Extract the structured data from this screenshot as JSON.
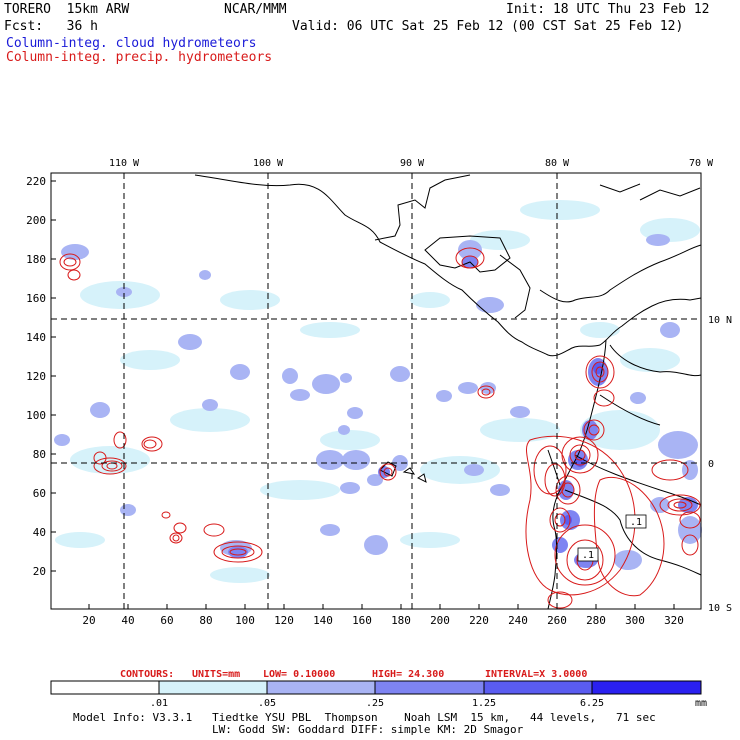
{
  "header": {
    "model": "TORERO  15km ARW",
    "center": "NCAR/MMM",
    "init": "Init: 18 UTC Thu 23 Feb 12",
    "fcst": "Fcst:   36 h",
    "valid": "Valid: 06 UTC Sat 25 Feb 12 (00 CST Sat 25 Feb 12)",
    "legend_cloud": "Column-integ. cloud hydrometeors",
    "legend_precip": "Column-integ. precip. hydrometeors"
  },
  "map": {
    "top_lon_labels": [
      "110 W",
      "100 W",
      "90 W",
      "80 W",
      "70 W"
    ],
    "right_lat_labels": [
      "10 N",
      "0",
      "10 S"
    ],
    "left_tick_labels": [
      "220",
      "200",
      "180",
      "160",
      "140",
      "120",
      "100",
      "80",
      "60",
      "40",
      "20"
    ],
    "bottom_tick_labels": [
      "20",
      "40",
      "60",
      "80",
      "100",
      "120",
      "140",
      "160",
      "180",
      "200",
      "220",
      "240",
      "260",
      "280",
      "300",
      "320"
    ],
    "contour_box_labels": [
      ".1",
      ".1"
    ]
  },
  "contour_info": {
    "contours": "CONTOURS:",
    "units": "UNITS=mm",
    "low": "LOW= 0.10000",
    "high": "HIGH=  24.300",
    "interval": "INTERVAL=X  3.0000"
  },
  "colorbar": {
    "labels": [
      ".01",
      ".05",
      ".25",
      "1.25",
      "6.25"
    ],
    "unit": "mm",
    "colors": [
      "#ffffff",
      "#d6f2fa",
      "#a9b4f4",
      "#7e84f2",
      "#5a5cf0",
      "#2a20f0"
    ]
  },
  "footer": {
    "line1": "Model Info: V3.3.1   Tiedtke YSU PBL  Thompson    Noah LSM  15 km,   44 levels,   71 sec",
    "line2": "LW: Godd SW: Goddard DIFF: simple KM: 2D Smagor"
  }
}
